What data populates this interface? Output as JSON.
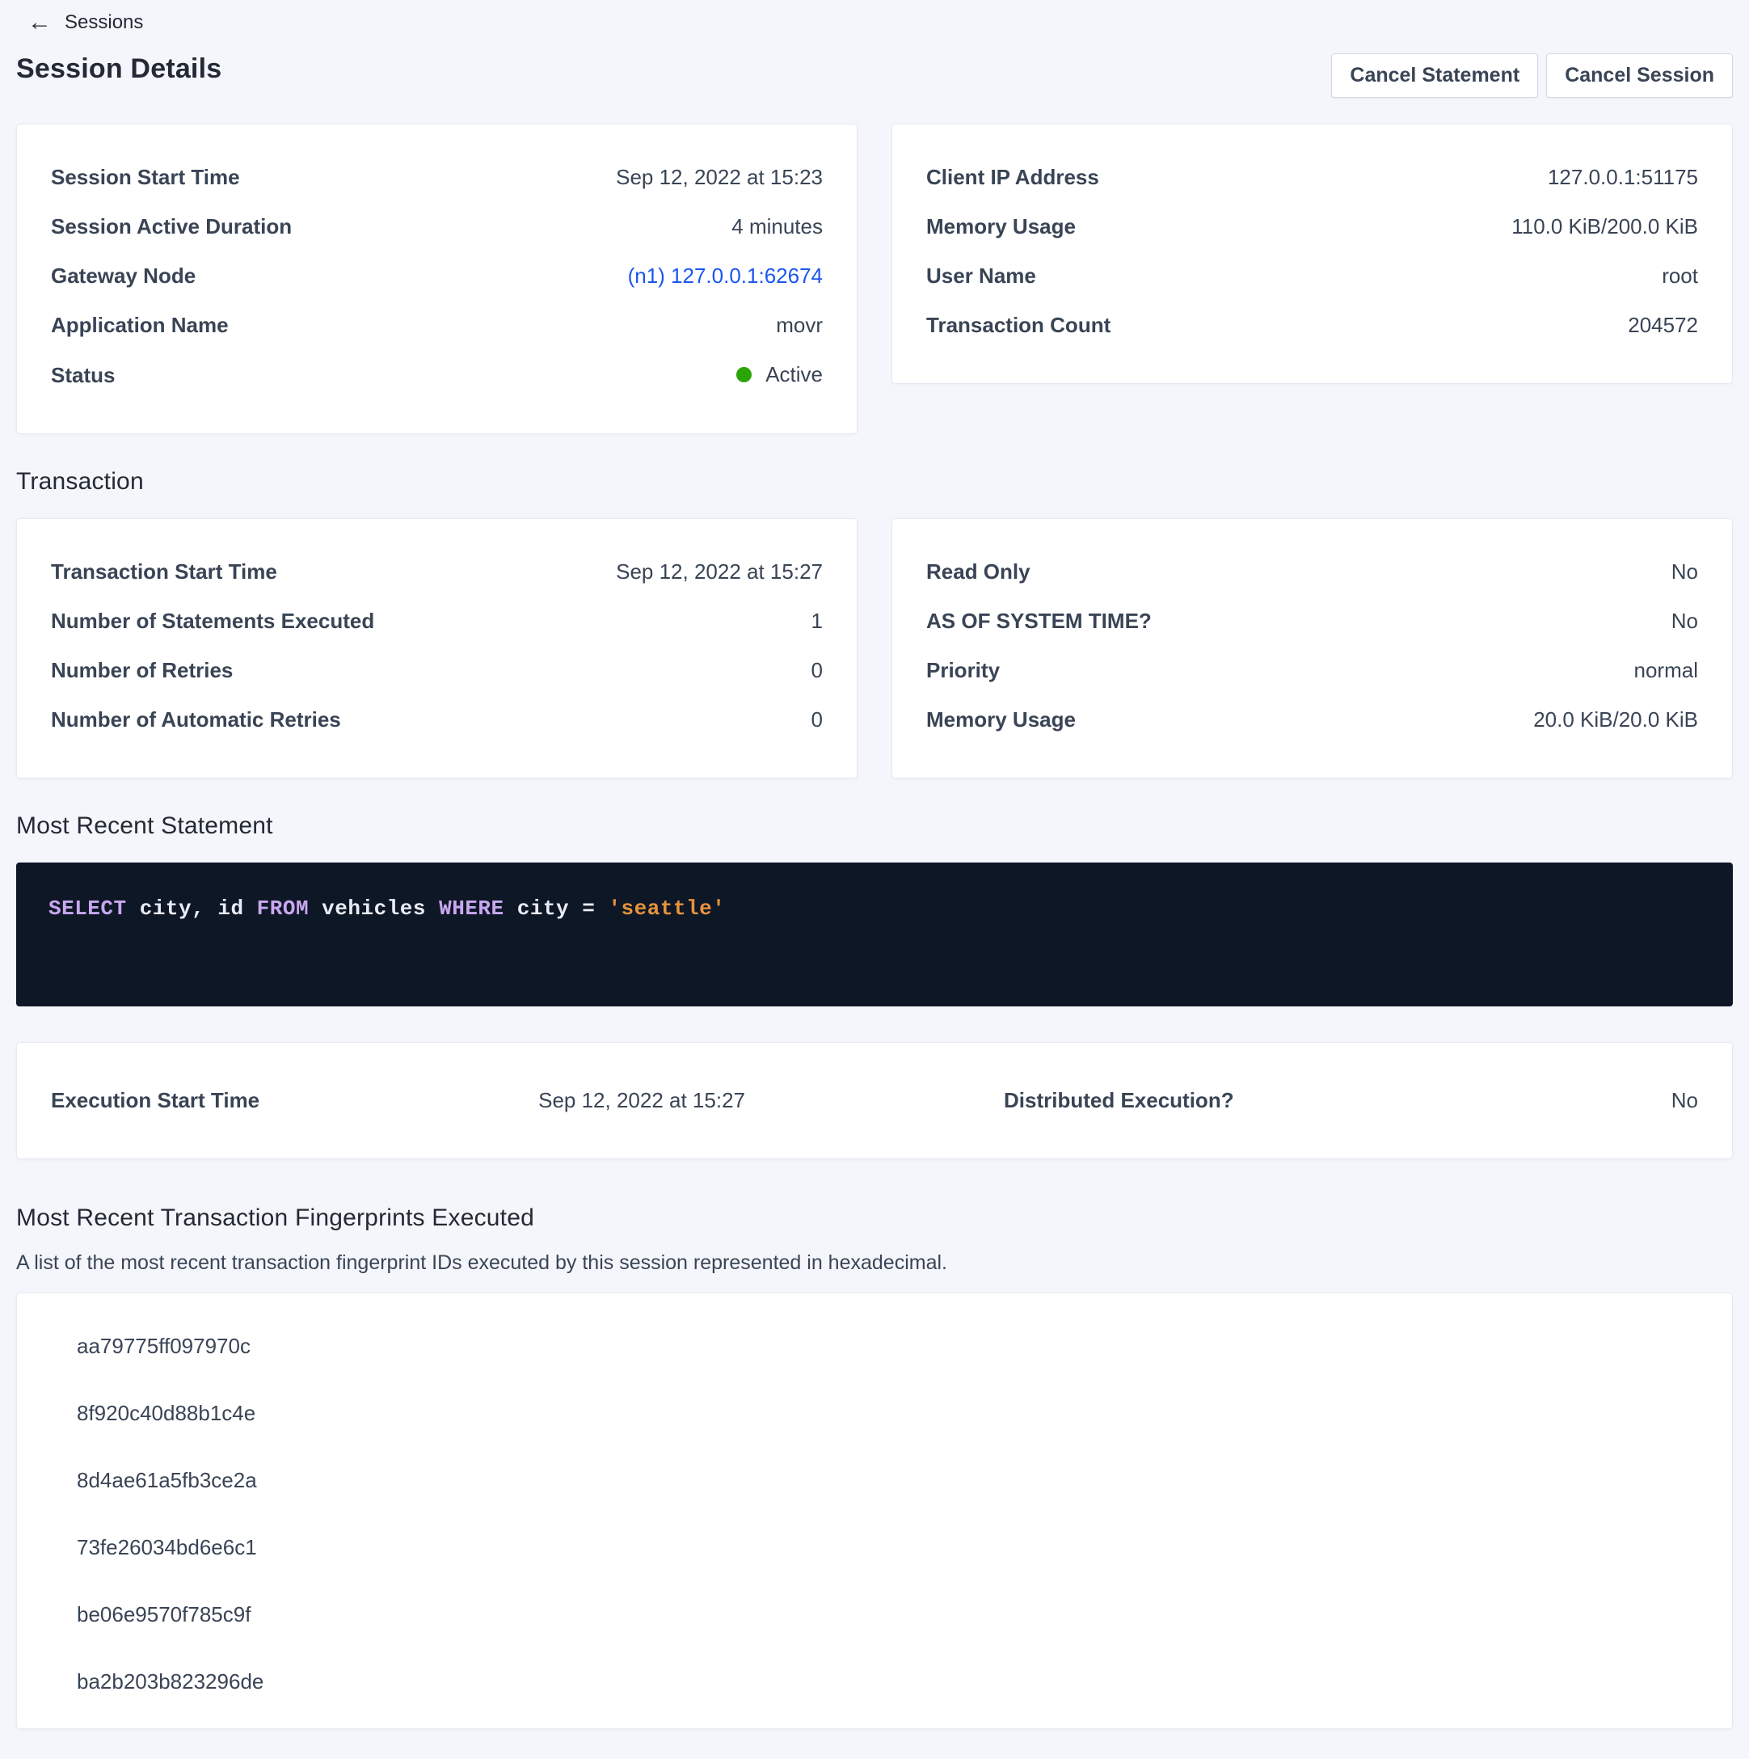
{
  "breadcrumb": {
    "back_icon": "←",
    "back_label": "Sessions"
  },
  "title": "Session Details",
  "actions": {
    "cancel_statement": "Cancel Statement",
    "cancel_session": "Cancel Session"
  },
  "overview": {
    "left": {
      "rows": [
        {
          "label": "Session Start Time",
          "value": "Sep 12, 2022 at 15:23"
        },
        {
          "label": "Session Active Duration",
          "value": "4 minutes"
        },
        {
          "label": "Gateway Node",
          "value": "(n1) 127.0.0.1:62674"
        },
        {
          "label": "Application Name",
          "value": "movr"
        },
        {
          "label": "Status",
          "value": "Active"
        }
      ]
    },
    "right": {
      "rows": [
        {
          "label": "Client IP Address",
          "value": "127.0.0.1:51175"
        },
        {
          "label": "Memory Usage",
          "value": "110.0 KiB/200.0 KiB"
        },
        {
          "label": "User Name",
          "value": "root"
        },
        {
          "label": "Transaction Count",
          "value": "204572"
        }
      ]
    }
  },
  "transaction": {
    "heading": "Transaction",
    "left": {
      "rows": [
        {
          "label": "Transaction Start Time",
          "value": "Sep 12, 2022 at 15:27"
        },
        {
          "label": "Number of Statements Executed",
          "value": "1"
        },
        {
          "label": "Number of Retries",
          "value": "0"
        },
        {
          "label": "Number of Automatic Retries",
          "value": "0"
        }
      ]
    },
    "right": {
      "rows": [
        {
          "label": "Read Only",
          "value": "No"
        },
        {
          "label": "AS OF SYSTEM TIME?",
          "value": "No"
        },
        {
          "label": "Priority",
          "value": "normal"
        },
        {
          "label": "Memory Usage",
          "value": "20.0 KiB/20.0 KiB"
        }
      ]
    }
  },
  "statement": {
    "heading": "Most Recent Statement",
    "sql_text": "SELECT city, id FROM vehicles WHERE city = 'seattle'",
    "parts": [
      {
        "text": "SELECT",
        "type": "keyword"
      },
      {
        "text": " city, id ",
        "type": "plain"
      },
      {
        "text": "FROM",
        "type": "keyword"
      },
      {
        "text": " vehicles ",
        "type": "plain"
      },
      {
        "text": "WHERE",
        "type": "keyword"
      },
      {
        "text": " city = ",
        "type": "plain"
      },
      {
        "text": "'seattle'",
        "type": "string"
      }
    ]
  },
  "execution": {
    "rows": [
      {
        "label": "Execution Start Time",
        "value": "Sep 12, 2022 at 15:27"
      },
      {
        "label": "Distributed Execution?",
        "value": "No"
      }
    ]
  },
  "fingerprints": {
    "heading": "Most Recent Transaction Fingerprints Executed",
    "description": "A list of the most recent transaction fingerprint IDs executed by this session represented in hexadecimal.",
    "items": [
      "aa79775ff097970c",
      "8f920c40d88b1c4e",
      "8d4ae61a5fb3ce2a",
      "73fe26034bd6e6c1",
      "be06e9570f785c9f",
      "ba2b203b823296de"
    ]
  },
  "colors": {
    "page_background": "#F4F6FB",
    "link_blue": "#1A56F0",
    "status_active_green": "#2BA405",
    "code_background": "#0E1726",
    "code_keyword": "#C8A7F0",
    "code_string": "#E7933D",
    "code_plain": "#E9ECF5"
  }
}
